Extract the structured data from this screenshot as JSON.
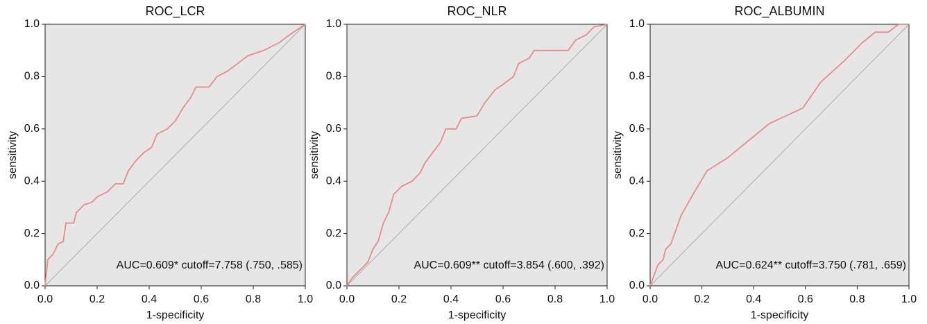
{
  "chart_data": [
    {
      "type": "line",
      "title": "ROC_LCR",
      "x_label": "1-specificity",
      "y_label": "sensitivity",
      "annotation": "AUC=0.609* cutoff=7.758 (.750, .585)",
      "color": "#e8898b",
      "x": [
        0,
        0.01,
        0.03,
        0.05,
        0.07,
        0.08,
        0.11,
        0.12,
        0.15,
        0.18,
        0.2,
        0.24,
        0.27,
        0.3,
        0.32,
        0.35,
        0.38,
        0.41,
        0.43,
        0.47,
        0.5,
        0.53,
        0.56,
        0.58,
        0.63,
        0.66,
        0.7,
        0.74,
        0.78,
        0.84,
        0.9,
        0.94,
        0.97,
        1
      ],
      "values": [
        0,
        0.1,
        0.12,
        0.16,
        0.17,
        0.24,
        0.24,
        0.28,
        0.31,
        0.32,
        0.34,
        0.36,
        0.39,
        0.39,
        0.44,
        0.48,
        0.51,
        0.53,
        0.58,
        0.6,
        0.63,
        0.68,
        0.72,
        0.76,
        0.76,
        0.8,
        0.82,
        0.85,
        0.88,
        0.9,
        0.93,
        0.96,
        0.98,
        1
      ],
      "xlim": [
        0,
        1
      ],
      "ylim": [
        0,
        1
      ],
      "xticks": [
        {
          "value": 0,
          "label": "0.0"
        },
        0.2,
        0.4,
        0.6,
        0.8,
        {
          "value": 1,
          "label": "1.0"
        }
      ],
      "yticks": [
        {
          "value": 0,
          "label": "0.0"
        },
        0.2,
        0.4,
        0.6,
        0.8,
        {
          "value": 1,
          "label": "1.0"
        }
      ]
    },
    {
      "type": "line",
      "title": "ROC_NLR",
      "x_label": "1-specificity",
      "y_label": "sensitivity",
      "annotation": "AUC=0.609** cutoff=3.854 (.600, .392)",
      "color": "#e8898b",
      "x": [
        0,
        0.02,
        0.05,
        0.08,
        0.1,
        0.12,
        0.14,
        0.16,
        0.18,
        0.21,
        0.25,
        0.28,
        0.3,
        0.33,
        0.36,
        0.38,
        0.42,
        0.44,
        0.5,
        0.53,
        0.57,
        0.6,
        0.64,
        0.66,
        0.7,
        0.72,
        0.85,
        0.88,
        0.92,
        0.95,
        1
      ],
      "values": [
        0,
        0.03,
        0.06,
        0.09,
        0.14,
        0.17,
        0.24,
        0.28,
        0.35,
        0.38,
        0.4,
        0.43,
        0.47,
        0.51,
        0.55,
        0.6,
        0.6,
        0.64,
        0.65,
        0.7,
        0.75,
        0.77,
        0.8,
        0.85,
        0.87,
        0.9,
        0.9,
        0.94,
        0.96,
        0.99,
        1
      ],
      "xlim": [
        0,
        1
      ],
      "ylim": [
        0,
        1
      ],
      "xticks": [
        {
          "value": 0,
          "label": "0.0"
        },
        0.2,
        0.4,
        0.6,
        0.8,
        {
          "value": 1,
          "label": "1.0"
        }
      ],
      "yticks": [
        {
          "value": 0,
          "label": "0.0"
        },
        0.2,
        0.4,
        0.6,
        0.8,
        {
          "value": 1,
          "label": "1.0"
        }
      ]
    },
    {
      "type": "line",
      "title": "ROC_ALBUMIN",
      "x_label": "1-specificity",
      "y_label": "sensitivity",
      "annotation": "AUC=0.624** cutoff=3.750 (.781, .659)",
      "color": "#e8898b",
      "x": [
        0,
        0.03,
        0.05,
        0.06,
        0.08,
        0.12,
        0.16,
        0.22,
        0.3,
        0.46,
        0.59,
        0.66,
        0.75,
        0.82,
        0.87,
        0.92,
        0.96,
        1
      ],
      "values": [
        0,
        0.08,
        0.1,
        0.14,
        0.16,
        0.27,
        0.34,
        0.44,
        0.49,
        0.62,
        0.68,
        0.78,
        0.86,
        0.93,
        0.97,
        0.97,
        1,
        1
      ],
      "xlim": [
        0,
        1
      ],
      "ylim": [
        0,
        1
      ],
      "xticks": [
        {
          "value": 0,
          "label": "0.0"
        },
        0.2,
        0.4,
        0.6,
        0.8,
        {
          "value": 1,
          "label": "1.0"
        }
      ],
      "yticks": [
        {
          "value": 0,
          "label": "0.0"
        },
        0.2,
        0.4,
        0.6,
        0.8,
        {
          "value": 1,
          "label": "1.0"
        }
      ]
    }
  ]
}
